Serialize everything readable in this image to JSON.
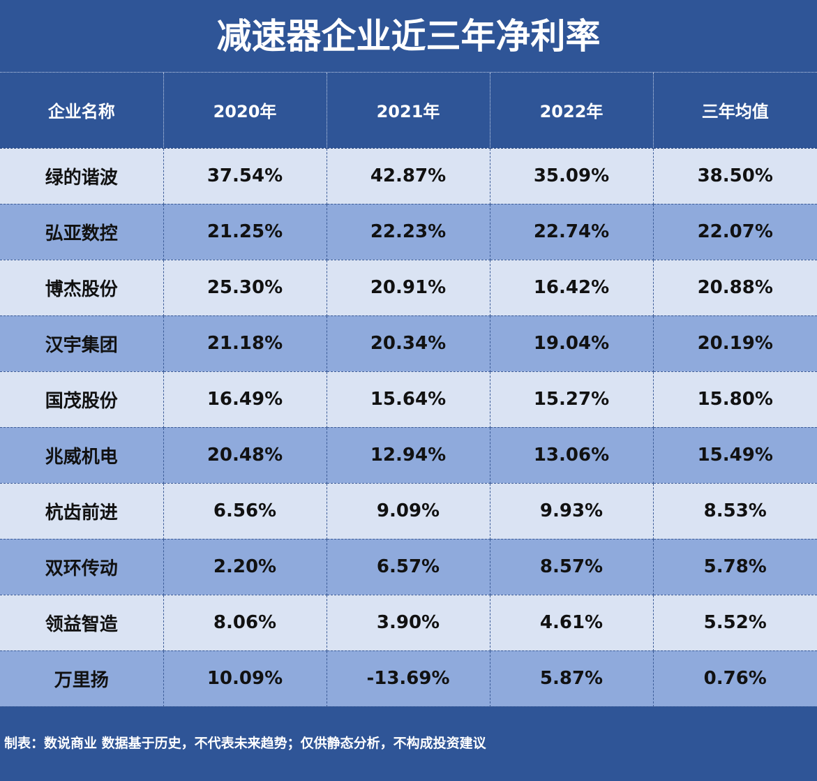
{
  "title": "减速器企业近三年净利率",
  "headers": [
    "企业名称",
    "2020年",
    "2021年",
    "2022年",
    "三年均值"
  ],
  "rows": [
    [
      "绿的谐波",
      "37.54%",
      "42.87%",
      "35.09%",
      "38.50%"
    ],
    [
      "弘亚数控",
      "21.25%",
      "22.23%",
      "22.74%",
      "22.07%"
    ],
    [
      "博杰股份",
      "25.30%",
      "20.91%",
      "16.42%",
      "20.88%"
    ],
    [
      "汉宇集团",
      "21.18%",
      "20.34%",
      "19.04%",
      "20.19%"
    ],
    [
      "国茂股份",
      "16.49%",
      "15.64%",
      "15.27%",
      "15.80%"
    ],
    [
      "兆威机电",
      "20.48%",
      "12.94%",
      "13.06%",
      "15.49%"
    ],
    [
      "杭齿前进",
      "6.56%",
      "9.09%",
      "9.93%",
      "8.53%"
    ],
    [
      "双环传动",
      "2.20%",
      "6.57%",
      "8.57%",
      "5.78%"
    ],
    [
      "领益智造",
      "8.06%",
      "3.90%",
      "4.61%",
      "5.52%"
    ],
    [
      "万里扬",
      "10.09%",
      "-13.69%",
      "5.87%",
      "0.76%"
    ]
  ],
  "footer": "制表：数说商业 数据基于历史，不代表未来趋势；仅供静态分析，不构成投资建议",
  "colors": {
    "background": "#2f5597",
    "row_light": "#dae3f3",
    "row_dark": "#8faadc"
  }
}
